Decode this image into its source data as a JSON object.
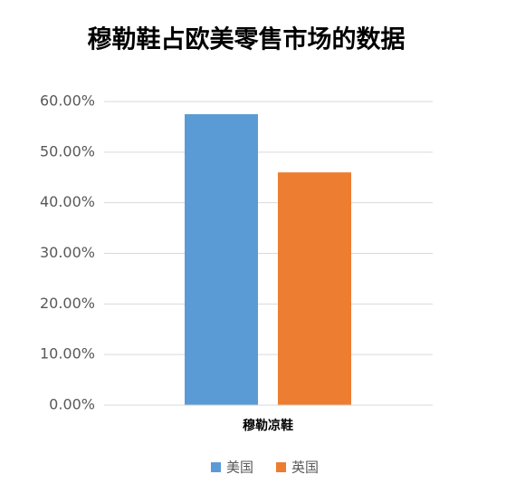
{
  "chart_data": {
    "type": "bar",
    "title": "穆勒鞋占欧美零售市场的数据",
    "categories": [
      "穆勒凉鞋"
    ],
    "series": [
      {
        "name": "美国",
        "color": "#5b9bd5",
        "values": [
          57.5
        ]
      },
      {
        "name": "英国",
        "color": "#ed7d31",
        "values": [
          46
        ]
      }
    ],
    "ylim": [
      0,
      60
    ],
    "yticks": [
      {
        "value": 0,
        "label": "0.00%"
      },
      {
        "value": 10,
        "label": "10.00%"
      },
      {
        "value": 20,
        "label": "20.00%"
      },
      {
        "value": 30,
        "label": "30.00%"
      },
      {
        "value": 40,
        "label": "40.00%"
      },
      {
        "value": 50,
        "label": "50.00%"
      },
      {
        "value": 60,
        "label": "60.00%"
      }
    ],
    "grid": true,
    "legend": "bottom"
  }
}
